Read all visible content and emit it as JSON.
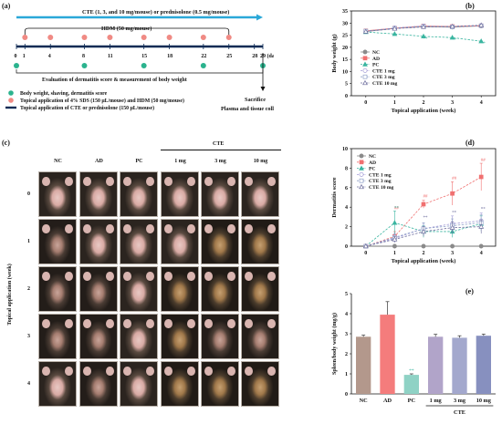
{
  "panels": {
    "a": {
      "tag": "(a)"
    },
    "b": {
      "tag": "(b)"
    },
    "c": {
      "tag": "(c)"
    },
    "d": {
      "tag": "(d)"
    },
    "e": {
      "tag": "(e)"
    }
  },
  "schedule": {
    "cte_text": "CTE (1, 3, and 10 mg/mouse) or prednisolone (0.5 mg/mouse)",
    "hdm_text": "HDM (50 mg/mouse)",
    "days": [
      "0",
      "1",
      "4",
      "8",
      "11",
      "15",
      "18",
      "22",
      "25",
      "28",
      "29 (days)"
    ],
    "eval_text": "Evaluation of dermatitis score & measurement of body weight",
    "sacrifice_text": "Sacrifice",
    "plasma_text": "Plasma and tissue collection",
    "legend": [
      {
        "text": "Body weight, shaving, dermatitis score",
        "color": "#2bb38e"
      },
      {
        "text": "Topical application of 4% SDS (150 μL/mouse) and HDM (50 mg/mouse)",
        "color": "#f08a84"
      },
      {
        "text": "Topical application of CTE or prednisolone (150 μL/mouse)",
        "color": "#0d2b55"
      }
    ],
    "colors": {
      "arrow": "#2aa8d8",
      "green": "#2bb38e",
      "pink": "#f08a84"
    }
  },
  "body_weight": {
    "ylabel": "Body weight (g)",
    "xlabel": "Topical application (week)",
    "legend": [
      "NC",
      "AD",
      "PC",
      "CTE 1 mg",
      "CTE 3 mg",
      "CTE 10 mg"
    ]
  },
  "photos": {
    "ylabel": "Topical application (week)",
    "group_header": "CTE",
    "col_labels": [
      "NC",
      "AD",
      "PC",
      "1 mg",
      "3 mg",
      "10 mg"
    ],
    "row_labels": [
      "0",
      "1",
      "2",
      "3",
      "4"
    ]
  },
  "dermatitis": {
    "ylabel": "Dermatitis score",
    "xlabel": "Topical application (week)",
    "legend": [
      "NC",
      "AD",
      "PC",
      "CTE 1 mg",
      "CTE 3 mg",
      "CTE 10 mg"
    ]
  },
  "spleen": {
    "ylabel": "Spleen/body weight (mg/g)",
    "cte_label": "CTE",
    "annotation": "**"
  },
  "chart_data": [
    {
      "type": "line",
      "title": "",
      "xlabel": "Topical application (week)",
      "ylabel": "Body weight (g)",
      "x": [
        0,
        1,
        2,
        3,
        4
      ],
      "xlim": [
        -0.5,
        4.5
      ],
      "ylim": [
        0,
        35
      ],
      "yticks": [
        0,
        5,
        10,
        15,
        20,
        25,
        30,
        35
      ],
      "legend_position": "top-right inside",
      "series": [
        {
          "name": "NC",
          "values": [
            26.5,
            27.8,
            28.5,
            28.3,
            28.8
          ],
          "color": "#8a8a8a",
          "marker": "circle"
        },
        {
          "name": "AD",
          "values": [
            26.8,
            27.9,
            28.8,
            28.6,
            28.9
          ],
          "color": "#f07070",
          "marker": "square"
        },
        {
          "name": "PC",
          "values": [
            26.3,
            25.5,
            24.5,
            24.0,
            22.5
          ],
          "color": "#3ab5a0",
          "marker": "triangle",
          "dashed": true
        },
        {
          "name": "CTE 1 mg",
          "values": [
            26.6,
            28.0,
            28.8,
            28.5,
            29.0
          ],
          "color": "#a29bd6",
          "marker": "circle-open",
          "dashed": true
        },
        {
          "name": "CTE 3 mg",
          "values": [
            26.7,
            27.8,
            28.6,
            28.4,
            28.9
          ],
          "color": "#8fa0c8",
          "marker": "square-open",
          "dashed": true
        },
        {
          "name": "CTE 10 mg",
          "values": [
            26.5,
            27.7,
            28.4,
            28.6,
            29.1
          ],
          "color": "#6c6c9c",
          "marker": "triangle-open",
          "dashed": true
        }
      ],
      "annotations": [
        {
          "x": 2,
          "y": 23.0,
          "text": "**"
        },
        {
          "x": 3,
          "y": 22.5,
          "text": "**"
        },
        {
          "x": 4,
          "y": 21.0,
          "text": "**"
        }
      ]
    },
    {
      "type": "line",
      "title": "",
      "xlabel": "Topical application (week)",
      "ylabel": "Dermatitis score",
      "x": [
        0,
        1,
        2,
        3,
        4
      ],
      "xlim": [
        -0.5,
        4.5
      ],
      "ylim": [
        0,
        10
      ],
      "yticks": [
        0,
        2,
        4,
        6,
        8,
        10
      ],
      "legend_position": "top-left inside",
      "series": [
        {
          "name": "NC",
          "values": [
            0,
            0,
            0,
            0,
            0
          ],
          "color": "#8a8a8a",
          "marker": "circle"
        },
        {
          "name": "AD",
          "values": [
            0,
            1.0,
            4.3,
            5.4,
            7.1
          ],
          "errors": [
            0,
            0.5,
            0.4,
            1.2,
            1.4
          ],
          "color": "#f07070",
          "marker": "square",
          "dashed": true
        },
        {
          "name": "PC",
          "values": [
            0,
            2.4,
            1.5,
            1.5,
            2.3
          ],
          "errors": [
            0,
            1.2,
            0.6,
            0.6,
            0.8
          ],
          "color": "#3ab5a0",
          "marker": "triangle",
          "dashed": true
        },
        {
          "name": "CTE 1 mg",
          "values": [
            0,
            0.8,
            1.8,
            2.3,
            2.6
          ],
          "errors": [
            0,
            0.4,
            0.6,
            0.8,
            0.8
          ],
          "color": "#a29bd6",
          "marker": "circle-open",
          "dashed": true
        },
        {
          "name": "CTE 3 mg",
          "values": [
            0,
            0.9,
            1.8,
            2.1,
            2.4
          ],
          "errors": [
            0,
            0.4,
            0.6,
            0.7,
            0.8
          ],
          "color": "#8fa0c8",
          "marker": "square-open",
          "dashed": true
        },
        {
          "name": "CTE 10 mg",
          "values": [
            0,
            0.7,
            1.5,
            1.9,
            2.0
          ],
          "errors": [
            0,
            0.3,
            0.5,
            0.6,
            0.7
          ],
          "color": "#6c6c9c",
          "marker": "triangle-open",
          "dashed": true
        }
      ],
      "annotations": [
        {
          "x": 1,
          "y": 3.8,
          "text": "##",
          "color": "#f07070"
        },
        {
          "x": 2,
          "y": 5.0,
          "text": "##",
          "color": "#f07070"
        },
        {
          "x": 3,
          "y": 6.8,
          "text": "##",
          "color": "#f07070"
        },
        {
          "x": 4,
          "y": 8.7,
          "text": "##",
          "color": "#f07070"
        },
        {
          "x": 1,
          "y": 3.8,
          "text": "**",
          "color": "#3ab5a0"
        },
        {
          "x": 2,
          "y": 2.8,
          "text": "**",
          "color": "#6c6c9c"
        },
        {
          "x": 3,
          "y": 3.3,
          "text": "**",
          "color": "#6c6c9c"
        },
        {
          "x": 4,
          "y": 3.7,
          "text": "**",
          "color": "#6c6c9c"
        }
      ]
    },
    {
      "type": "bar",
      "title": "",
      "xlabel": "",
      "ylabel": "Spleen/body weight (mg/g)",
      "categories": [
        "NC",
        "AD",
        "PC",
        "1 mg",
        "3 mg",
        "10 mg"
      ],
      "values": [
        2.85,
        3.95,
        0.95,
        2.85,
        2.8,
        2.9
      ],
      "errors": [
        0.08,
        0.65,
        0.05,
        0.12,
        0.1,
        0.08
      ],
      "colors": [
        "#b3988c",
        "#f47c7c",
        "#8fd2c5",
        "#b1a4c9",
        "#a3a8cd",
        "#8790bf"
      ],
      "ylim": [
        0,
        5
      ],
      "yticks": [
        0,
        1,
        2,
        3,
        4,
        5
      ]
    }
  ]
}
